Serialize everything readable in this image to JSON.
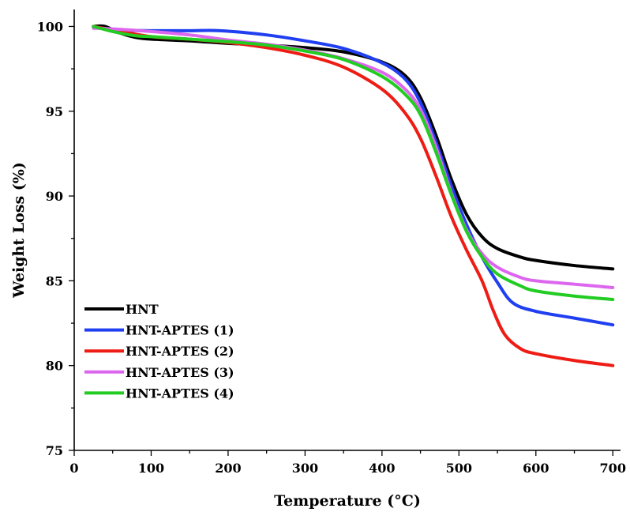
{
  "chart_data": {
    "type": "line",
    "title": "",
    "xlabel": "Temperature (°C)",
    "ylabel": "Weight Loss (%)",
    "xlim": [
      0,
      710
    ],
    "ylim": [
      75,
      101
    ],
    "x_ticks": [
      0,
      100,
      200,
      300,
      400,
      500,
      600,
      700
    ],
    "y_ticks": [
      75,
      80,
      85,
      90,
      95,
      100
    ],
    "grid": false,
    "legend_position": "bottom-left",
    "series": [
      {
        "name": "HNT",
        "color": "#000000",
        "points": [
          [
            25,
            100
          ],
          [
            40,
            100
          ],
          [
            60,
            99.6
          ],
          [
            80,
            99.35
          ],
          [
            100,
            99.25
          ],
          [
            150,
            99.15
          ],
          [
            200,
            99.0
          ],
          [
            250,
            98.9
          ],
          [
            300,
            98.75
          ],
          [
            350,
            98.5
          ],
          [
            400,
            97.9
          ],
          [
            430,
            97.1
          ],
          [
            450,
            95.8
          ],
          [
            470,
            93.6
          ],
          [
            490,
            91.0
          ],
          [
            510,
            88.9
          ],
          [
            530,
            87.6
          ],
          [
            550,
            86.9
          ],
          [
            580,
            86.4
          ],
          [
            600,
            86.2
          ],
          [
            650,
            85.9
          ],
          [
            700,
            85.7
          ]
        ]
      },
      {
        "name": "HNT-APTES (1)",
        "color": "#1f3ff0",
        "points": [
          [
            25,
            100
          ],
          [
            50,
            99.8
          ],
          [
            100,
            99.75
          ],
          [
            150,
            99.75
          ],
          [
            190,
            99.75
          ],
          [
            250,
            99.5
          ],
          [
            300,
            99.15
          ],
          [
            350,
            98.7
          ],
          [
            400,
            97.85
          ],
          [
            430,
            96.9
          ],
          [
            450,
            95.5
          ],
          [
            470,
            93.2
          ],
          [
            490,
            90.6
          ],
          [
            510,
            88.3
          ],
          [
            530,
            86.4
          ],
          [
            550,
            84.9
          ],
          [
            570,
            83.7
          ],
          [
            600,
            83.2
          ],
          [
            650,
            82.8
          ],
          [
            700,
            82.4
          ]
        ]
      },
      {
        "name": "HNT-APTES (2)",
        "color": "#ee1c14",
        "points": [
          [
            25,
            100
          ],
          [
            50,
            99.8
          ],
          [
            100,
            99.4
          ],
          [
            150,
            99.25
          ],
          [
            200,
            99.05
          ],
          [
            250,
            98.75
          ],
          [
            300,
            98.3
          ],
          [
            350,
            97.6
          ],
          [
            400,
            96.3
          ],
          [
            430,
            94.9
          ],
          [
            450,
            93.4
          ],
          [
            470,
            91.2
          ],
          [
            490,
            88.8
          ],
          [
            510,
            86.8
          ],
          [
            530,
            85.0
          ],
          [
            545,
            83.2
          ],
          [
            560,
            81.8
          ],
          [
            580,
            81.0
          ],
          [
            600,
            80.7
          ],
          [
            650,
            80.3
          ],
          [
            700,
            80.0
          ]
        ]
      },
      {
        "name": "HNT-APTES (3)",
        "color": "#dd66ee",
        "points": [
          [
            25,
            99.9
          ],
          [
            50,
            99.85
          ],
          [
            100,
            99.7
          ],
          [
            150,
            99.5
          ],
          [
            200,
            99.2
          ],
          [
            250,
            98.95
          ],
          [
            300,
            98.6
          ],
          [
            350,
            98.1
          ],
          [
            400,
            97.3
          ],
          [
            430,
            96.3
          ],
          [
            450,
            95.1
          ],
          [
            470,
            92.9
          ],
          [
            490,
            90.2
          ],
          [
            510,
            88.0
          ],
          [
            530,
            86.6
          ],
          [
            550,
            85.8
          ],
          [
            580,
            85.2
          ],
          [
            600,
            85.0
          ],
          [
            650,
            84.8
          ],
          [
            700,
            84.6
          ]
        ]
      },
      {
        "name": "HNT-APTES (4)",
        "color": "#22cc22",
        "points": [
          [
            25,
            100
          ],
          [
            50,
            99.7
          ],
          [
            80,
            99.45
          ],
          [
            100,
            99.4
          ],
          [
            150,
            99.25
          ],
          [
            200,
            99.1
          ],
          [
            250,
            98.9
          ],
          [
            300,
            98.55
          ],
          [
            350,
            98.05
          ],
          [
            400,
            97.05
          ],
          [
            430,
            96.0
          ],
          [
            450,
            94.8
          ],
          [
            470,
            92.6
          ],
          [
            490,
            90.1
          ],
          [
            510,
            87.9
          ],
          [
            530,
            86.4
          ],
          [
            550,
            85.4
          ],
          [
            580,
            84.7
          ],
          [
            600,
            84.4
          ],
          [
            650,
            84.1
          ],
          [
            700,
            83.9
          ]
        ]
      }
    ]
  }
}
